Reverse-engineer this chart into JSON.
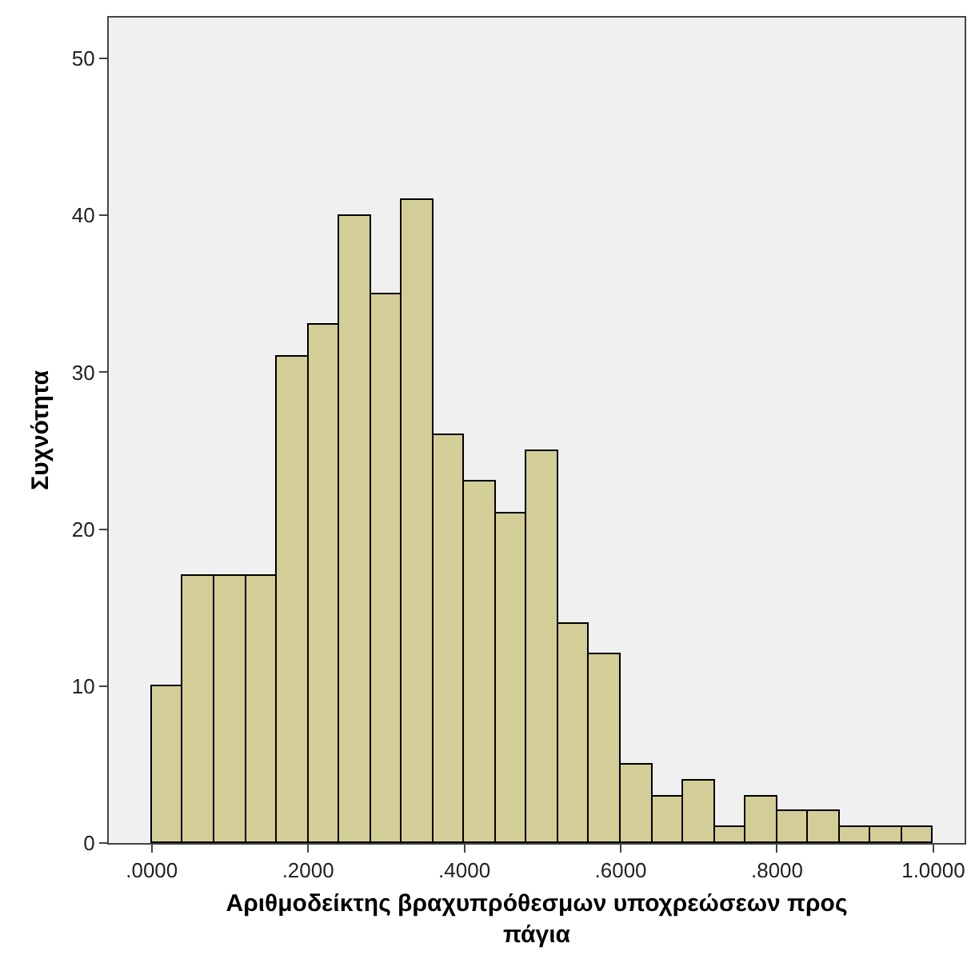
{
  "chart_data": {
    "type": "histogram",
    "xlabel": "Αριθμοδείκτης βραχυπρόθεσμων υποχρεώσεων προς πάγια",
    "ylabel": "Συχνότητα",
    "bins": [
      0,
      0.04,
      0.08,
      0.12,
      0.16,
      0.2,
      0.24,
      0.28,
      0.32,
      0.36,
      0.4,
      0.44,
      0.48,
      0.52,
      0.56,
      0.6,
      0.64,
      0.68,
      0.72,
      0.76,
      0.8,
      0.84,
      0.88,
      0.92,
      0.96,
      1.0
    ],
    "values": [
      10,
      17,
      17,
      17,
      31,
      33,
      40,
      35,
      41,
      26,
      23,
      21,
      25,
      14,
      12,
      5,
      3,
      4,
      1,
      3,
      2,
      2,
      1,
      1,
      1
    ],
    "color": "#d3ce97",
    "xlim": [
      -0.055,
      1.04
    ],
    "xticks": [
      {
        "value": 0,
        "label": ".0000"
      },
      {
        "value": 0.2,
        "label": ".2000"
      },
      {
        "value": 0.4,
        "label": ".4000"
      },
      {
        "value": 0.6,
        "label": ".6000"
      },
      {
        "value": 0.8,
        "label": ".8000"
      },
      {
        "value": 1.0,
        "label": "1.0000"
      }
    ],
    "ylim": [
      0,
      52.6
    ],
    "yticks": [
      0,
      10,
      20,
      30,
      40,
      50
    ],
    "grid": false
  }
}
